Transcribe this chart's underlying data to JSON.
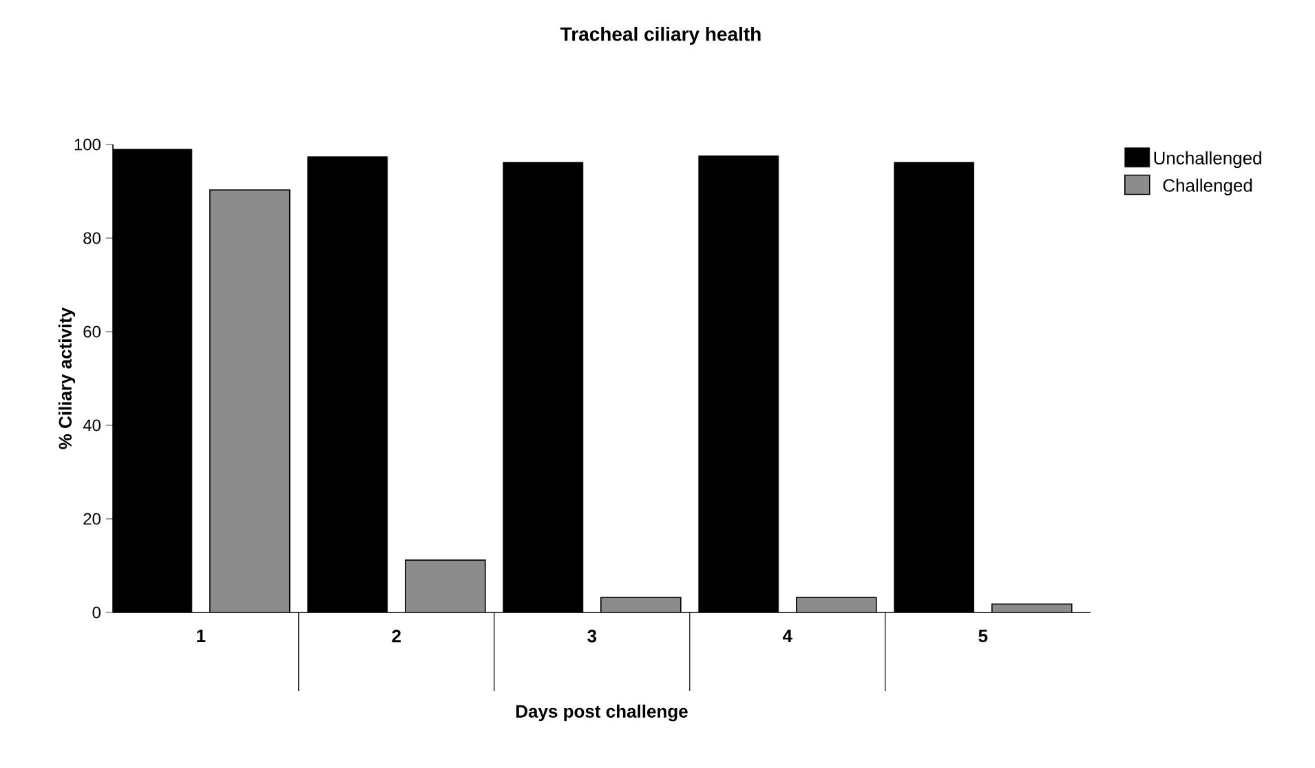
{
  "chart_data": {
    "type": "bar",
    "title": "Tracheal ciliary health",
    "xlabel": "Days post challenge",
    "ylabel": "% Ciliary activity",
    "categories": [
      "1",
      "2",
      "3",
      "4",
      "5"
    ],
    "series": [
      {
        "name": "Unchallenged",
        "color": "#000000",
        "values": [
          99,
          97.4,
          96.2,
          97.6,
          96.2
        ]
      },
      {
        "name": "Challenged",
        "color": "#8c8c8c",
        "values": [
          90.3,
          11.2,
          3.2,
          3.2,
          1.8
        ]
      }
    ],
    "ylim": [
      0,
      100
    ],
    "yticks": [
      0,
      20,
      40,
      60,
      80,
      100
    ],
    "grid": false,
    "legend": "right"
  }
}
